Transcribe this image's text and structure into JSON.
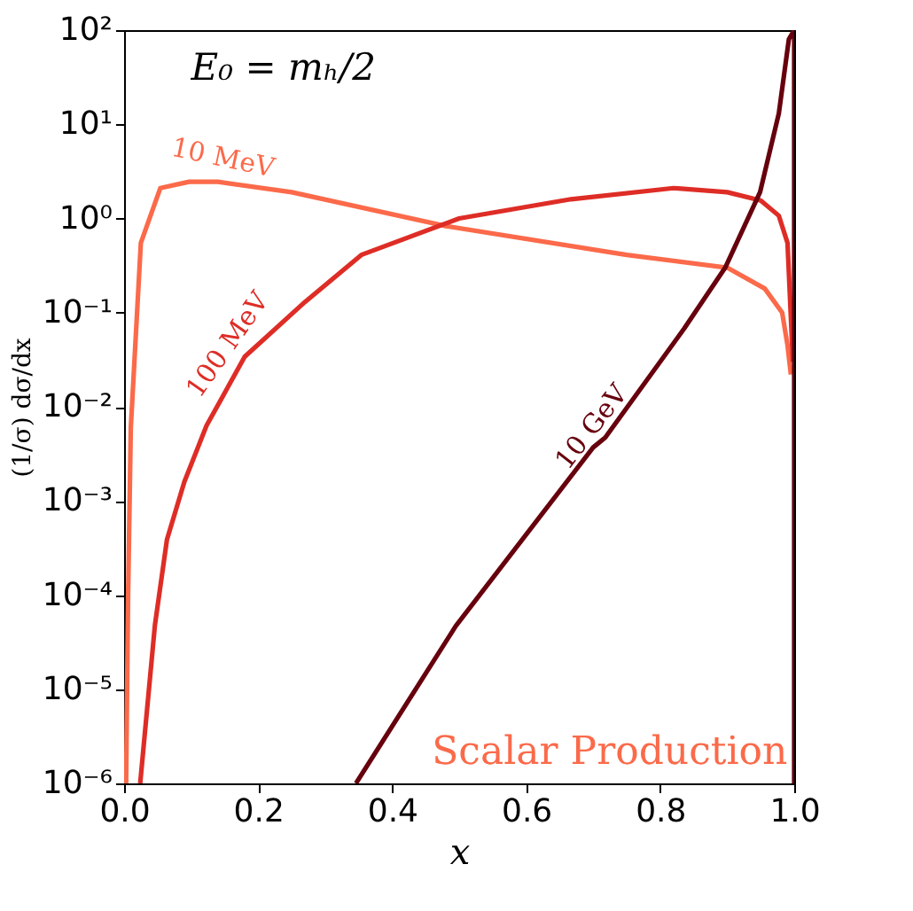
{
  "chart_data": {
    "type": "line",
    "xlabel": "x",
    "ylabel": "(1/σ) dσ/dx",
    "log": "y",
    "grid": false,
    "legend": false,
    "line_style": "solid",
    "marker": "none",
    "xlim": [
      0.0,
      1.0
    ],
    "xticks": [
      {
        "value": 0,
        "label": "0.0"
      },
      0.2,
      0.4,
      0.6,
      0.8,
      {
        "value": 1,
        "label": "1.0"
      }
    ],
    "ylim": [
      1e-06,
      100
    ],
    "yticks": [
      {
        "value": 1e-06,
        "label": "10⁻⁶"
      },
      {
        "value": 1e-05,
        "label": "10⁻⁵"
      },
      {
        "value": 0.0001,
        "label": "10⁻⁴"
      },
      {
        "value": 0.001,
        "label": "10⁻³"
      },
      {
        "value": 0.01,
        "label": "10⁻²"
      },
      {
        "value": 0.1,
        "label": "10⁻¹"
      },
      {
        "value": 1,
        "label": "10⁰"
      },
      {
        "value": 10,
        "label": "10¹"
      },
      {
        "value": 100,
        "label": "10²"
      }
    ],
    "annotations": [
      "E₀ = mₕ/2",
      "Scalar Production"
    ],
    "series": [
      {
        "name": "10 MeV",
        "color": "#fb6a4a",
        "x": [
          0.003,
          0.006,
          0.01,
          0.025,
          0.054,
          0.097,
          0.14,
          0.25,
          0.48,
          0.75,
          0.9,
          0.956,
          0.982,
          0.99,
          0.995
        ],
        "values": [
          1e-06,
          0.0001,
          0.006,
          0.55,
          2.1,
          2.45,
          2.45,
          1.9,
          0.83,
          0.41,
          0.3,
          0.18,
          0.1,
          0.045,
          0.022
        ]
      },
      {
        "name": "100 MeV",
        "color": "#de2d26",
        "x": [
          0.024,
          0.046,
          0.064,
          0.09,
          0.123,
          0.18,
          0.27,
          0.354,
          0.5,
          0.667,
          0.82,
          0.9,
          0.95,
          0.977,
          0.99,
          0.998
        ],
        "values": [
          1e-06,
          4.8e-05,
          0.00039,
          0.0016,
          0.0063,
          0.034,
          0.13,
          0.41,
          1.0,
          1.6,
          2.1,
          1.9,
          1.55,
          1.07,
          0.55,
          0.03
        ]
      },
      {
        "name": "10 GeV",
        "color": "#67000d",
        "x": [
          0.346,
          0.495,
          0.7,
          0.718,
          0.836,
          0.897,
          0.949,
          0.977,
          0.992,
          1.0,
          1.0
        ],
        "values": [
          1e-06,
          4.7e-05,
          0.0037,
          0.0047,
          0.068,
          0.3,
          1.9,
          13,
          80,
          100,
          1e-06
        ]
      }
    ]
  }
}
